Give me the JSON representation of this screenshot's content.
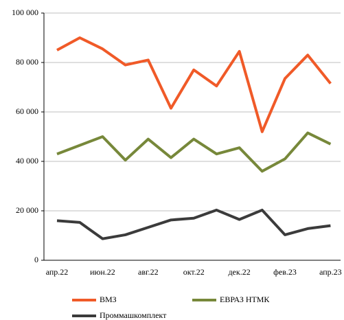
{
  "chart_data": {
    "type": "line",
    "categories": [
      "апр.22",
      null,
      "июн.22",
      null,
      "авг.22",
      null,
      "окт.22",
      null,
      "дек.22",
      null,
      "фев.23",
      null,
      "апр.23"
    ],
    "series": [
      {
        "name": "ВМЗ",
        "color": "#f05a28",
        "values": [
          85000,
          90000,
          85500,
          79000,
          81000,
          61500,
          77000,
          70500,
          84500,
          52000,
          73500,
          83000,
          71500
        ]
      },
      {
        "name": "ЕВРАЗ НТМК",
        "color": "#77883a",
        "values": [
          43000,
          46500,
          50000,
          40500,
          49000,
          41500,
          49000,
          43000,
          45500,
          36000,
          41000,
          51500,
          47000
        ]
      },
      {
        "name": "Проммашкомплект",
        "color": "#3b3b3b",
        "values": [
          16000,
          15300,
          8700,
          10300,
          13300,
          16300,
          17000,
          20300,
          16500,
          20300,
          10300,
          12800,
          14000
        ]
      }
    ],
    "ylim": [
      0,
      100000
    ],
    "yticks": [
      0,
      {
        "value": 20000,
        "label": "20 000"
      },
      {
        "value": 40000,
        "label": "40 000"
      },
      {
        "value": 60000,
        "label": "60 000"
      },
      {
        "value": 80000,
        "label": "80 000"
      },
      {
        "value": 100000,
        "label": "100 000"
      }
    ],
    "grid": true
  }
}
